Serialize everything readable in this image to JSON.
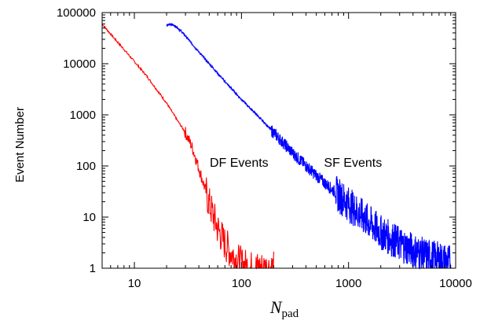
{
  "chart_data": {
    "type": "line",
    "xscale": "log",
    "yscale": "log",
    "xlim": [
      5,
      10000
    ],
    "ylim": [
      1,
      100000
    ],
    "xlabel": "N",
    "xlabel_subscript": "pad",
    "ylabel": "Event Number",
    "xticks": [
      "10",
      "100",
      "1000",
      "10000"
    ],
    "yticks": [
      "1",
      "10",
      "100",
      "1000",
      "10000",
      "100000"
    ],
    "grid": false,
    "annotations": [
      {
        "text": "DF Events",
        "x": 95,
        "y": 120
      },
      {
        "text": "SF Events",
        "x": 1100,
        "y": 120
      }
    ],
    "series": [
      {
        "color": "#ff0000",
        "x": [
          5,
          6,
          8,
          10,
          13,
          16,
          20,
          25,
          30,
          35,
          40,
          45,
          50,
          60,
          70,
          80,
          90,
          100,
          120,
          150,
          180,
          200
        ],
        "y": [
          60000,
          38000,
          19000,
          11000,
          5800,
          3200,
          1700,
          800,
          450,
          220,
          90,
          40,
          18,
          6,
          3,
          2,
          1.5,
          1.2,
          1,
          1,
          1,
          1
        ]
      },
      {
        "color": "#0000ff",
        "x": [
          20,
          22,
          25,
          30,
          40,
          50,
          70,
          100,
          150,
          200,
          300,
          500,
          700,
          1000,
          1300,
          2000,
          3000,
          5000,
          7000,
          9000
        ],
        "y": [
          55000,
          60000,
          52000,
          35000,
          17000,
          10000,
          4500,
          2000,
          850,
          450,
          180,
          65,
          35,
          18,
          11,
          5,
          3,
          1.8,
          1.5,
          1.3
        ]
      }
    ]
  }
}
